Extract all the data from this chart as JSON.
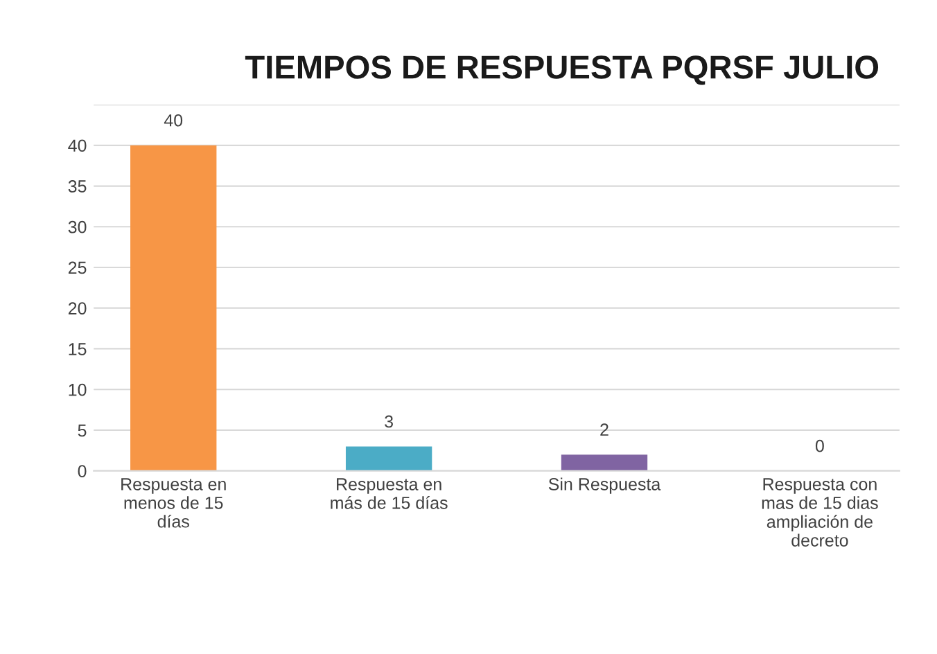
{
  "chart_data": {
    "type": "bar",
    "title": "TIEMPOS DE RESPUESTA PQRSF JULIO",
    "categories": [
      "Respuesta en\nmenos de 15\ndías",
      "Respuesta en\nmás de 15 días",
      "Sin Respuesta",
      "Respuesta con\nmas de 15 dias\nampliación de\ndecreto"
    ],
    "values": [
      40,
      3,
      2,
      0
    ],
    "colors": [
      "#f79646",
      "#4bacc6",
      "#8064a2",
      "#3b2314"
    ],
    "ylim": [
      0,
      45
    ],
    "yticks": [
      0,
      5,
      10,
      15,
      20,
      25,
      30,
      35,
      40,
      {
        "value": 45,
        "label": null
      }
    ],
    "grid": "y",
    "data_labels": true
  }
}
